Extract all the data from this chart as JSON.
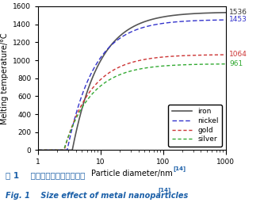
{
  "title": "",
  "xlabel": "Particle diameter/nm",
  "ylabel": "Melting temperature/°C",
  "xlim": [
    1,
    1000
  ],
  "ylim": [
    0,
    1600
  ],
  "yticks": [
    0,
    200,
    400,
    600,
    800,
    1000,
    1200,
    1400,
    1600
  ],
  "bulk_melting": {
    "iron": 1536,
    "nickel": 1453,
    "gold": 1064,
    "silver": 961
  },
  "metals_onset": {
    "iron": 3.5,
    "nickel": 2.9,
    "gold": 2.6,
    "silver": 2.55
  },
  "line_styles": {
    "iron": {
      "color": "#555555",
      "linestyle": "-",
      "linewidth": 1.2,
      "dashes": null
    },
    "nickel": {
      "color": "#3333cc",
      "linestyle": "--",
      "linewidth": 1.0,
      "dashes": [
        4,
        2
      ]
    },
    "gold": {
      "color": "#cc3333",
      "linestyle": "--",
      "linewidth": 1.0,
      "dashes": [
        3,
        2
      ]
    },
    "silver": {
      "color": "#33aa33",
      "linestyle": "--",
      "linewidth": 1.0,
      "dashes": [
        3,
        2
      ]
    }
  },
  "legend_labels": [
    "iron",
    "nickel",
    "gold",
    "silver"
  ],
  "annotations": [
    {
      "text": "1536",
      "color": "#333333",
      "y": 1536
    },
    {
      "text": "1453",
      "color": "#3333cc",
      "y": 1453
    },
    {
      "text": "1064",
      "color": "#cc3333",
      "y": 1064
    },
    {
      "text": "961",
      "color": "#33aa33",
      "y": 961
    }
  ],
  "fig_caption_cn": "图 1    金属纳米颗粒的尺寸效应",
  "fig_caption_en": "Fig. 1    Size effect of metal nanoparticles",
  "caption_superscript_cn": "[14]",
  "caption_superscript_en": "[14]",
  "background_color": "#ffffff"
}
